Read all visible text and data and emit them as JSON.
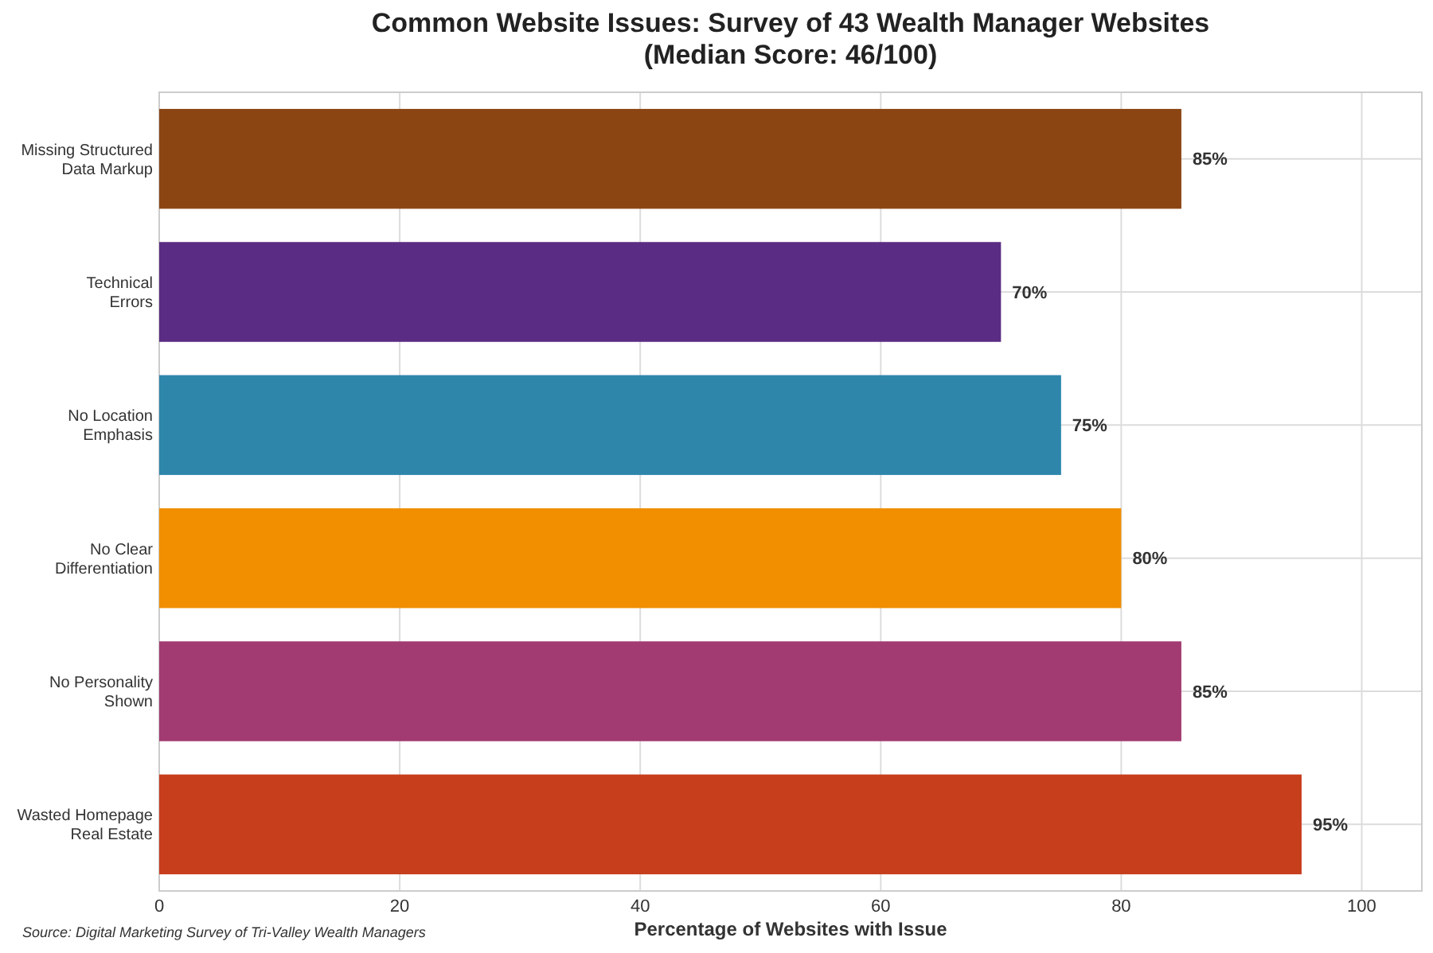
{
  "chart_data": {
    "type": "bar",
    "orientation": "horizontal",
    "title": "Common Website Issues: Survey of 43 Wealth Manager Websites\n(Median Score: 46/100)",
    "xlabel": "Percentage of Websites with Issue",
    "categories": [
      "Missing Structured\nData Markup",
      "Technical\nErrors",
      "No Location\nEmphasis",
      "No Clear\nDifferentiation",
      "No Personality\nShown",
      "Wasted Homepage\nReal Estate"
    ],
    "values": [
      85,
      70,
      75,
      80,
      85,
      95
    ],
    "colors": [
      "#8b4513",
      "#5b2c83",
      "#2e86ab",
      "#f18f01",
      "#a23b72",
      "#c73e1d"
    ],
    "value_labels": [
      "85%",
      "70%",
      "75%",
      "80%",
      "85%",
      "95%"
    ],
    "xlim": [
      0,
      105
    ],
    "xticks": [
      0,
      20,
      40,
      60,
      80,
      100
    ],
    "grid": true,
    "annotations": [
      "Source: Digital Marketing Survey of Tri-Valley Wealth Managers"
    ]
  }
}
